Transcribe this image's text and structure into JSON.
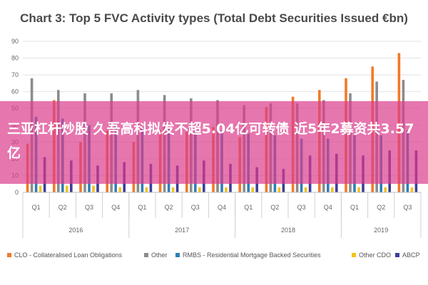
{
  "chart_data": {
    "type": "bar",
    "title": "Chart 3: Top 5 FVC Activity types (Total Debt Securities Issued €bn)",
    "ylim": [
      0,
      90
    ],
    "yticks": [
      "0",
      "10",
      "20",
      "30",
      "40",
      "50",
      "60",
      "70",
      "80",
      "90"
    ],
    "grid": true,
    "legend_position": "bottom",
    "categories": [
      "Q1",
      "Q2",
      "Q3",
      "Q4",
      "Q1",
      "Q2",
      "Q3",
      "Q4",
      "Q1",
      "Q2",
      "Q3",
      "Q4",
      "Q1",
      "Q2",
      "Q3"
    ],
    "years": [
      {
        "label": "2016",
        "quarters": 4
      },
      {
        "label": "2017",
        "quarters": 4
      },
      {
        "label": "2018",
        "quarters": 4
      },
      {
        "label": "2019",
        "quarters": 3
      }
    ],
    "series": [
      {
        "name": "CLO - Collateralised Loan Obligations",
        "color": "#f07a2a",
        "values": [
          29,
          55,
          30,
          37,
          30,
          37,
          36,
          39,
          33,
          51,
          57,
          61,
          68,
          75,
          83
        ]
      },
      {
        "name": "Other",
        "color": "#8c8c8c",
        "values": [
          68,
          61,
          59,
          59,
          61,
          58,
          56,
          55,
          52,
          53,
          53,
          55,
          59,
          66,
          67
        ]
      },
      {
        "name": "RMBS - Residential Mortgage Backed Securities",
        "color": "#2e7fb8",
        "values": [
          45,
          44,
          40,
          40,
          39,
          38,
          37,
          37,
          35,
          34,
          32,
          32,
          34,
          34,
          37
        ]
      },
      {
        "name": "Other CDO",
        "color": "#f5c11a",
        "values": [
          4,
          4,
          4,
          3,
          3,
          3,
          3,
          3,
          3,
          3,
          3,
          3,
          3,
          3,
          3
        ]
      },
      {
        "name": "ABCP",
        "color": "#3b3f9a",
        "values": [
          21,
          19,
          16,
          18,
          17,
          16,
          19,
          17,
          15,
          14,
          22,
          23,
          22,
          25,
          25
        ]
      }
    ]
  },
  "overlay": {
    "headline": "三亚杠杆炒股 久吾高科拟发不超5.04亿可转债 近5年2募资共3.57亿",
    "color": "#dc3c8c"
  }
}
